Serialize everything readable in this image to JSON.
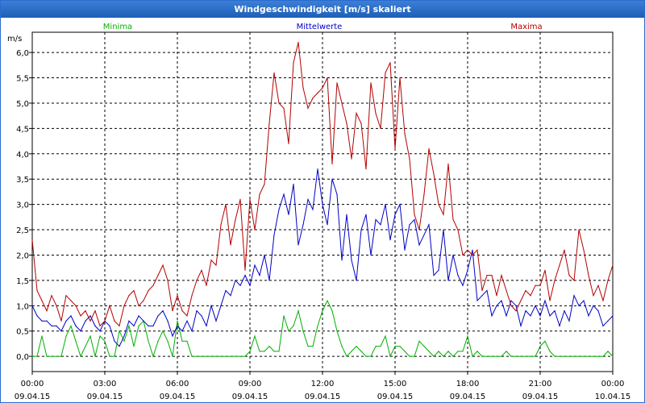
{
  "window": {
    "title": "Windgeschwindigkeit [m/s] skaliert"
  },
  "chart_data": {
    "type": "line",
    "title": "Windgeschwindigkeit [m/s] skaliert",
    "ylabel": "m/s",
    "xlabel": "",
    "ylim": [
      -0.3,
      6.4
    ],
    "xlim": [
      0,
      24
    ],
    "grid": true,
    "legend_placement": "top",
    "x_ticks": [
      {
        "time": "00:00",
        "date": "09.04.15"
      },
      {
        "time": "03:00",
        "date": "09.04.15"
      },
      {
        "time": "06:00",
        "date": "09.04.15"
      },
      {
        "time": "09:00",
        "date": "09.04.15"
      },
      {
        "time": "12:00",
        "date": "09.04.15"
      },
      {
        "time": "15:00",
        "date": "09.04.15"
      },
      {
        "time": "18:00",
        "date": "09.04.15"
      },
      {
        "time": "21:00",
        "date": "09.04.15"
      },
      {
        "time": "00:00",
        "date": "10.04.15"
      }
    ],
    "y_ticks": [
      {
        "v": 0,
        "label": "0,0"
      },
      {
        "v": 0.5,
        "label": "0,5"
      },
      {
        "v": 1,
        "label": "1,0"
      },
      {
        "v": 1.5,
        "label": "1,5"
      },
      {
        "v": 2,
        "label": "2,0"
      },
      {
        "v": 2.5,
        "label": "2,5"
      },
      {
        "v": 3,
        "label": "3,0"
      },
      {
        "v": 3.5,
        "label": "3,5"
      },
      {
        "v": 4,
        "label": "4,0"
      },
      {
        "v": 4.5,
        "label": "4,5"
      },
      {
        "v": 5,
        "label": "5,0"
      },
      {
        "v": 5.5,
        "label": "5,5"
      },
      {
        "v": 6,
        "label": "6,0"
      }
    ],
    "x_hours": [
      0,
      0.2,
      0.4,
      0.6,
      0.8,
      1,
      1.2,
      1.4,
      1.6,
      1.8,
      2,
      2.2,
      2.4,
      2.6,
      2.8,
      3,
      3.2,
      3.4,
      3.6,
      3.8,
      4,
      4.2,
      4.4,
      4.6,
      4.8,
      5,
      5.2,
      5.4,
      5.6,
      5.8,
      6,
      6.2,
      6.4,
      6.6,
      6.8,
      7,
      7.2,
      7.4,
      7.6,
      7.8,
      8,
      8.2,
      8.4,
      8.6,
      8.8,
      9,
      9.2,
      9.4,
      9.6,
      9.8,
      10,
      10.2,
      10.4,
      10.6,
      10.8,
      11,
      11.2,
      11.4,
      11.6,
      11.8,
      12,
      12.2,
      12.4,
      12.6,
      12.8,
      13,
      13.2,
      13.4,
      13.6,
      13.8,
      14,
      14.2,
      14.4,
      14.6,
      14.8,
      15,
      15.2,
      15.4,
      15.6,
      15.8,
      16,
      16.2,
      16.4,
      16.6,
      16.8,
      17,
      17.2,
      17.4,
      17.6,
      17.8,
      18,
      18.2,
      18.4,
      18.6,
      18.8,
      19,
      19.2,
      19.4,
      19.6,
      19.8,
      20,
      20.2,
      20.4,
      20.6,
      20.8,
      21,
      21.2,
      21.4,
      21.6,
      21.8,
      22,
      22.2,
      22.4,
      22.6,
      22.8,
      23,
      23.2,
      23.4,
      23.6,
      23.8,
      24
    ],
    "series": [
      {
        "name": "Minima",
        "color": "#00b000",
        "values": [
          0,
          0,
          0.4,
          0,
          0,
          0,
          0,
          0.4,
          0.6,
          0.3,
          0,
          0.2,
          0.4,
          0,
          0.4,
          0.3,
          0,
          0,
          0.5,
          0.3,
          0.6,
          0.2,
          0.6,
          0.7,
          0.3,
          0,
          0.3,
          0.5,
          0.3,
          0,
          0.7,
          0.3,
          0.3,
          0,
          0,
          0,
          0,
          0,
          0,
          0,
          0,
          0,
          0,
          0,
          0,
          0.1,
          0.4,
          0.1,
          0.1,
          0.2,
          0.1,
          0.1,
          0.8,
          0.5,
          0.6,
          0.9,
          0.5,
          0.2,
          0.2,
          0.6,
          0.9,
          1.1,
          0.9,
          0.5,
          0.2,
          0,
          0.1,
          0.2,
          0.1,
          0,
          0,
          0.2,
          0.2,
          0.4,
          0,
          0.2,
          0.2,
          0.1,
          0,
          0,
          0.3,
          0.2,
          0.1,
          0,
          0.1,
          0,
          0.1,
          0,
          0.1,
          0.1,
          0.4,
          0,
          0.1,
          0,
          0,
          0,
          0,
          0,
          0.1,
          0,
          0,
          0,
          0,
          0,
          0,
          0.2,
          0.3,
          0.1,
          0,
          0,
          0,
          0,
          0,
          0,
          0,
          0,
          0,
          0,
          0,
          0.1,
          0
        ]
      },
      {
        "name": "Mittelwerte",
        "color": "#0000c8",
        "values": [
          1,
          0.8,
          0.7,
          0.7,
          0.6,
          0.6,
          0.5,
          0.7,
          0.8,
          0.6,
          0.5,
          0.7,
          0.8,
          0.6,
          0.5,
          0.7,
          0.6,
          0.3,
          0.2,
          0.4,
          0.7,
          0.6,
          0.8,
          0.7,
          0.6,
          0.6,
          0.8,
          0.9,
          0.7,
          0.4,
          0.6,
          0.5,
          0.7,
          0.5,
          0.9,
          0.8,
          0.6,
          1,
          0.7,
          1,
          1.3,
          1.2,
          1.5,
          1.4,
          1.6,
          1.4,
          1.8,
          1.6,
          2,
          1.5,
          2.4,
          2.9,
          3.2,
          2.8,
          3.4,
          2.2,
          2.6,
          3.1,
          2.9,
          3.7,
          3,
          2.6,
          3.5,
          3.2,
          1.9,
          2.8,
          1.9,
          1.5,
          2.5,
          2.8,
          2,
          2.7,
          2.6,
          3,
          2.3,
          2.8,
          3,
          2.1,
          2.6,
          2.7,
          2.2,
          2.4,
          2.6,
          1.6,
          1.7,
          2.5,
          1.5,
          2,
          1.6,
          1.4,
          1.7,
          2.1,
          1.1,
          1.2,
          1.3,
          0.8,
          1,
          1.1,
          0.8,
          1.1,
          1,
          0.6,
          0.9,
          0.8,
          1,
          0.8,
          1.1,
          0.8,
          0.9,
          0.6,
          0.9,
          0.7,
          1.2,
          1,
          1.1,
          0.8,
          1,
          0.9,
          0.6,
          0.7,
          0.8
        ]
      },
      {
        "name": "Maxima",
        "color": "#b40000",
        "values": [
          2.3,
          1.3,
          1.1,
          0.9,
          1.2,
          1,
          0.7,
          1.2,
          1.1,
          1,
          0.8,
          0.9,
          0.7,
          0.9,
          0.6,
          0.7,
          1,
          0.7,
          0.6,
          1,
          1.2,
          1.3,
          1,
          1.1,
          1.3,
          1.4,
          1.6,
          1.8,
          1.5,
          0.9,
          1.2,
          0.9,
          0.8,
          1.2,
          1.5,
          1.7,
          1.4,
          1.9,
          1.8,
          2.6,
          3,
          2.2,
          2.7,
          3.1,
          1.7,
          3.1,
          2.5,
          3.2,
          3.4,
          4.6,
          5.6,
          5,
          4.9,
          4.2,
          5.8,
          6.2,
          5.3,
          4.9,
          5.1,
          5.2,
          5.3,
          5.5,
          3.8,
          5.4,
          5,
          4.6,
          3.9,
          4.8,
          4.6,
          3.7,
          5.4,
          4.8,
          4.5,
          5.6,
          5.8,
          4.1,
          5.5,
          4.4,
          3.9,
          2.8,
          2.5,
          3.2,
          4.1,
          3.6,
          3,
          2.8,
          3.8,
          2.7,
          2.5,
          2,
          2.1,
          2,
          2.1,
          1.3,
          1.6,
          1.6,
          1.2,
          1.6,
          1.3,
          1,
          0.9,
          1.1,
          1.3,
          1.2,
          1.4,
          1.4,
          1.7,
          1.1,
          1.5,
          1.8,
          2.1,
          1.6,
          1.5,
          2.5,
          2.1,
          1.6,
          1.2,
          1.4,
          1.1,
          1.5,
          1.8
        ]
      }
    ]
  }
}
